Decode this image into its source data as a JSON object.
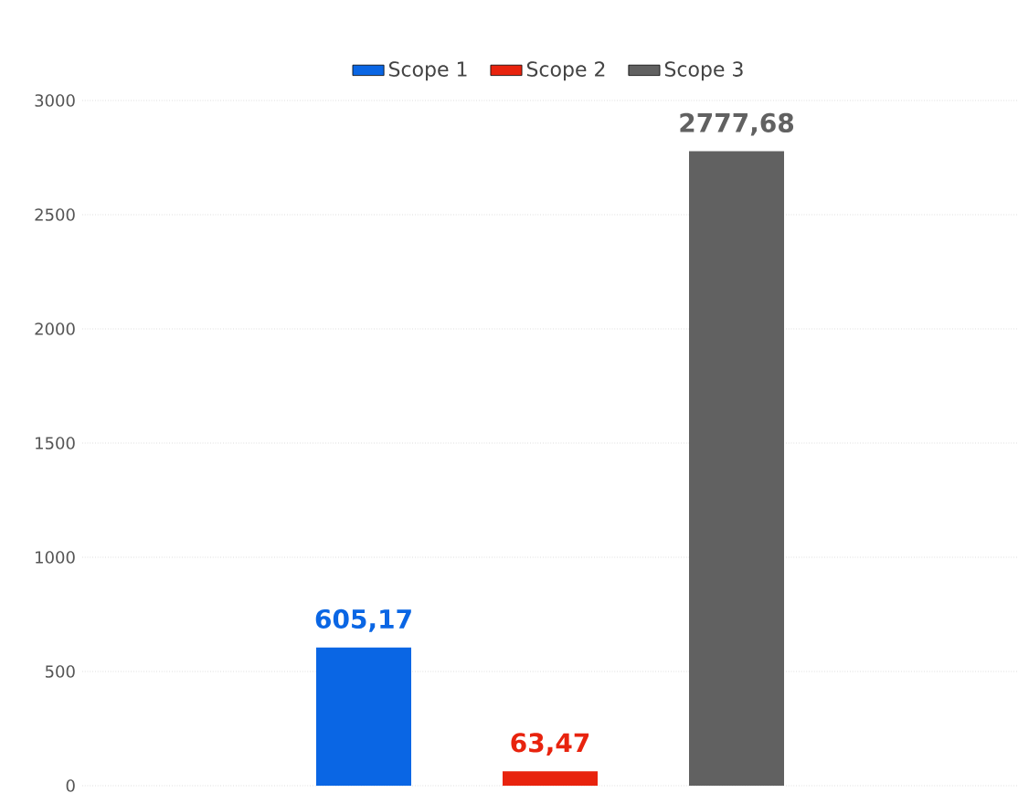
{
  "chart_data": {
    "type": "bar",
    "categories": [
      null
    ],
    "series": [
      {
        "name": "Scope 1",
        "color": "#0a66e4",
        "values": [
          605.17
        ],
        "value_labels": [
          "605,17"
        ]
      },
      {
        "name": "Scope 2",
        "color": "#e8230e",
        "values": [
          63.47
        ],
        "value_labels": [
          "63,47"
        ]
      },
      {
        "name": "Scope 3",
        "color": "#616161",
        "values": [
          2777.68
        ],
        "value_labels": [
          "2777,68"
        ]
      }
    ],
    "ylim": [
      0,
      3000
    ],
    "yticks": [
      0,
      500,
      1000,
      1500,
      2000,
      2500,
      3000
    ],
    "grid": "y",
    "legend": "top"
  }
}
